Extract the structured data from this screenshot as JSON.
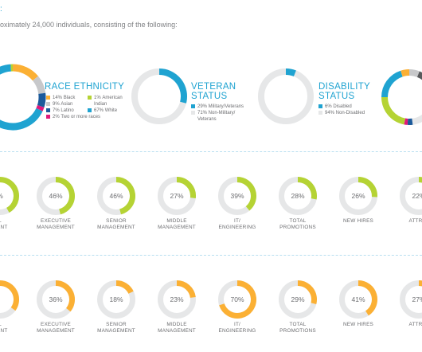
{
  "header": {
    "intro": "oximately 24,000 individuals, consisting of the following:",
    "stub_colon": ":"
  },
  "colors": {
    "blue": "#1fa3d1",
    "orange": "#fbb034",
    "green": "#b5d334",
    "gray": "#c7c8ca",
    "dark": "#58595b",
    "navy": "#1c5a9b",
    "pink": "#e0197b",
    "track": "#e6e7e8"
  },
  "race": {
    "title_line1": "RACE ETHNICITY",
    "legend": [
      {
        "pct": "14%",
        "label": "Black",
        "color": "#fbb034"
      },
      {
        "pct": "1%",
        "label": "American",
        "label2": "Indian",
        "color": "#b5d334"
      },
      {
        "pct": "9%",
        "label": "Asian",
        "color": "#c7c8ca"
      },
      {
        "pct": "7%",
        "label": "Latino",
        "color": "#1c5a9b"
      },
      {
        "pct": "67%",
        "label": "White",
        "color": "#1fa3d1"
      },
      {
        "pct": "2%",
        "label": "Two or more races",
        "color": "#e0197b"
      }
    ]
  },
  "veteran": {
    "title_line1": "VETERAN",
    "title_line2": "STATUS",
    "legend": [
      {
        "text": "29% Military/Veterans",
        "color": "#1fa3d1"
      },
      {
        "text": "71% Non-Military/",
        "text2": "Veterans",
        "color": "#e6e7e8"
      }
    ],
    "value": 0.29
  },
  "disability": {
    "title_line1": "DISABILITY",
    "title_line2": "STATUS",
    "legend": [
      {
        "text": "6% Disabled",
        "color": "#1fa3d1"
      },
      {
        "text": "94% Non-Disabled",
        "color": "#e6e7e8"
      }
    ],
    "value": 0.06
  },
  "gender_row": [
    {
      "pct": "%",
      "label1": "L",
      "label2": "MENT",
      "value": 0.42
    },
    {
      "pct": "46%",
      "label1": "EXECUTIVE",
      "label2": "MANAGEMENT",
      "value": 0.46
    },
    {
      "pct": "46%",
      "label1": "SENIOR",
      "label2": "MANAGEMENT",
      "value": 0.46
    },
    {
      "pct": "27%",
      "label1": "MIDDLE",
      "label2": "MANAGEMENT",
      "value": 0.27
    },
    {
      "pct": "39%",
      "label1": "IT/",
      "label2": "ENGINEERING",
      "value": 0.39
    },
    {
      "pct": "28%",
      "label1": "TOTAL",
      "label2": "PROMOTIONS",
      "value": 0.28
    },
    {
      "pct": "26%",
      "label1": "NEW HIRES",
      "label2": "",
      "value": 0.26
    },
    {
      "pct": "22%",
      "label1": "ATTRITI",
      "label2": "",
      "value": 0.22
    }
  ],
  "minority_row": [
    {
      "pct": "",
      "label1": "L",
      "label2": "MENT",
      "value": 0.35
    },
    {
      "pct": "36%",
      "label1": "EXECUTIVE",
      "label2": "MANAGEMENT",
      "value": 0.36
    },
    {
      "pct": "18%",
      "label1": "SENIOR",
      "label2": "MANAGEMENT",
      "value": 0.18
    },
    {
      "pct": "23%",
      "label1": "MIDDLE",
      "label2": "MANAGEMENT",
      "value": 0.23
    },
    {
      "pct": "70%",
      "label1": "IT/",
      "label2": "ENGINEERING",
      "value": 0.7
    },
    {
      "pct": "29%",
      "label1": "TOTAL",
      "label2": "PROMOTIONS",
      "value": 0.29
    },
    {
      "pct": "41%",
      "label1": "NEW HIRES",
      "label2": "",
      "value": 0.41
    },
    {
      "pct": "27%",
      "label1": "ATTRITI",
      "label2": "",
      "value": 0.27
    }
  ]
}
